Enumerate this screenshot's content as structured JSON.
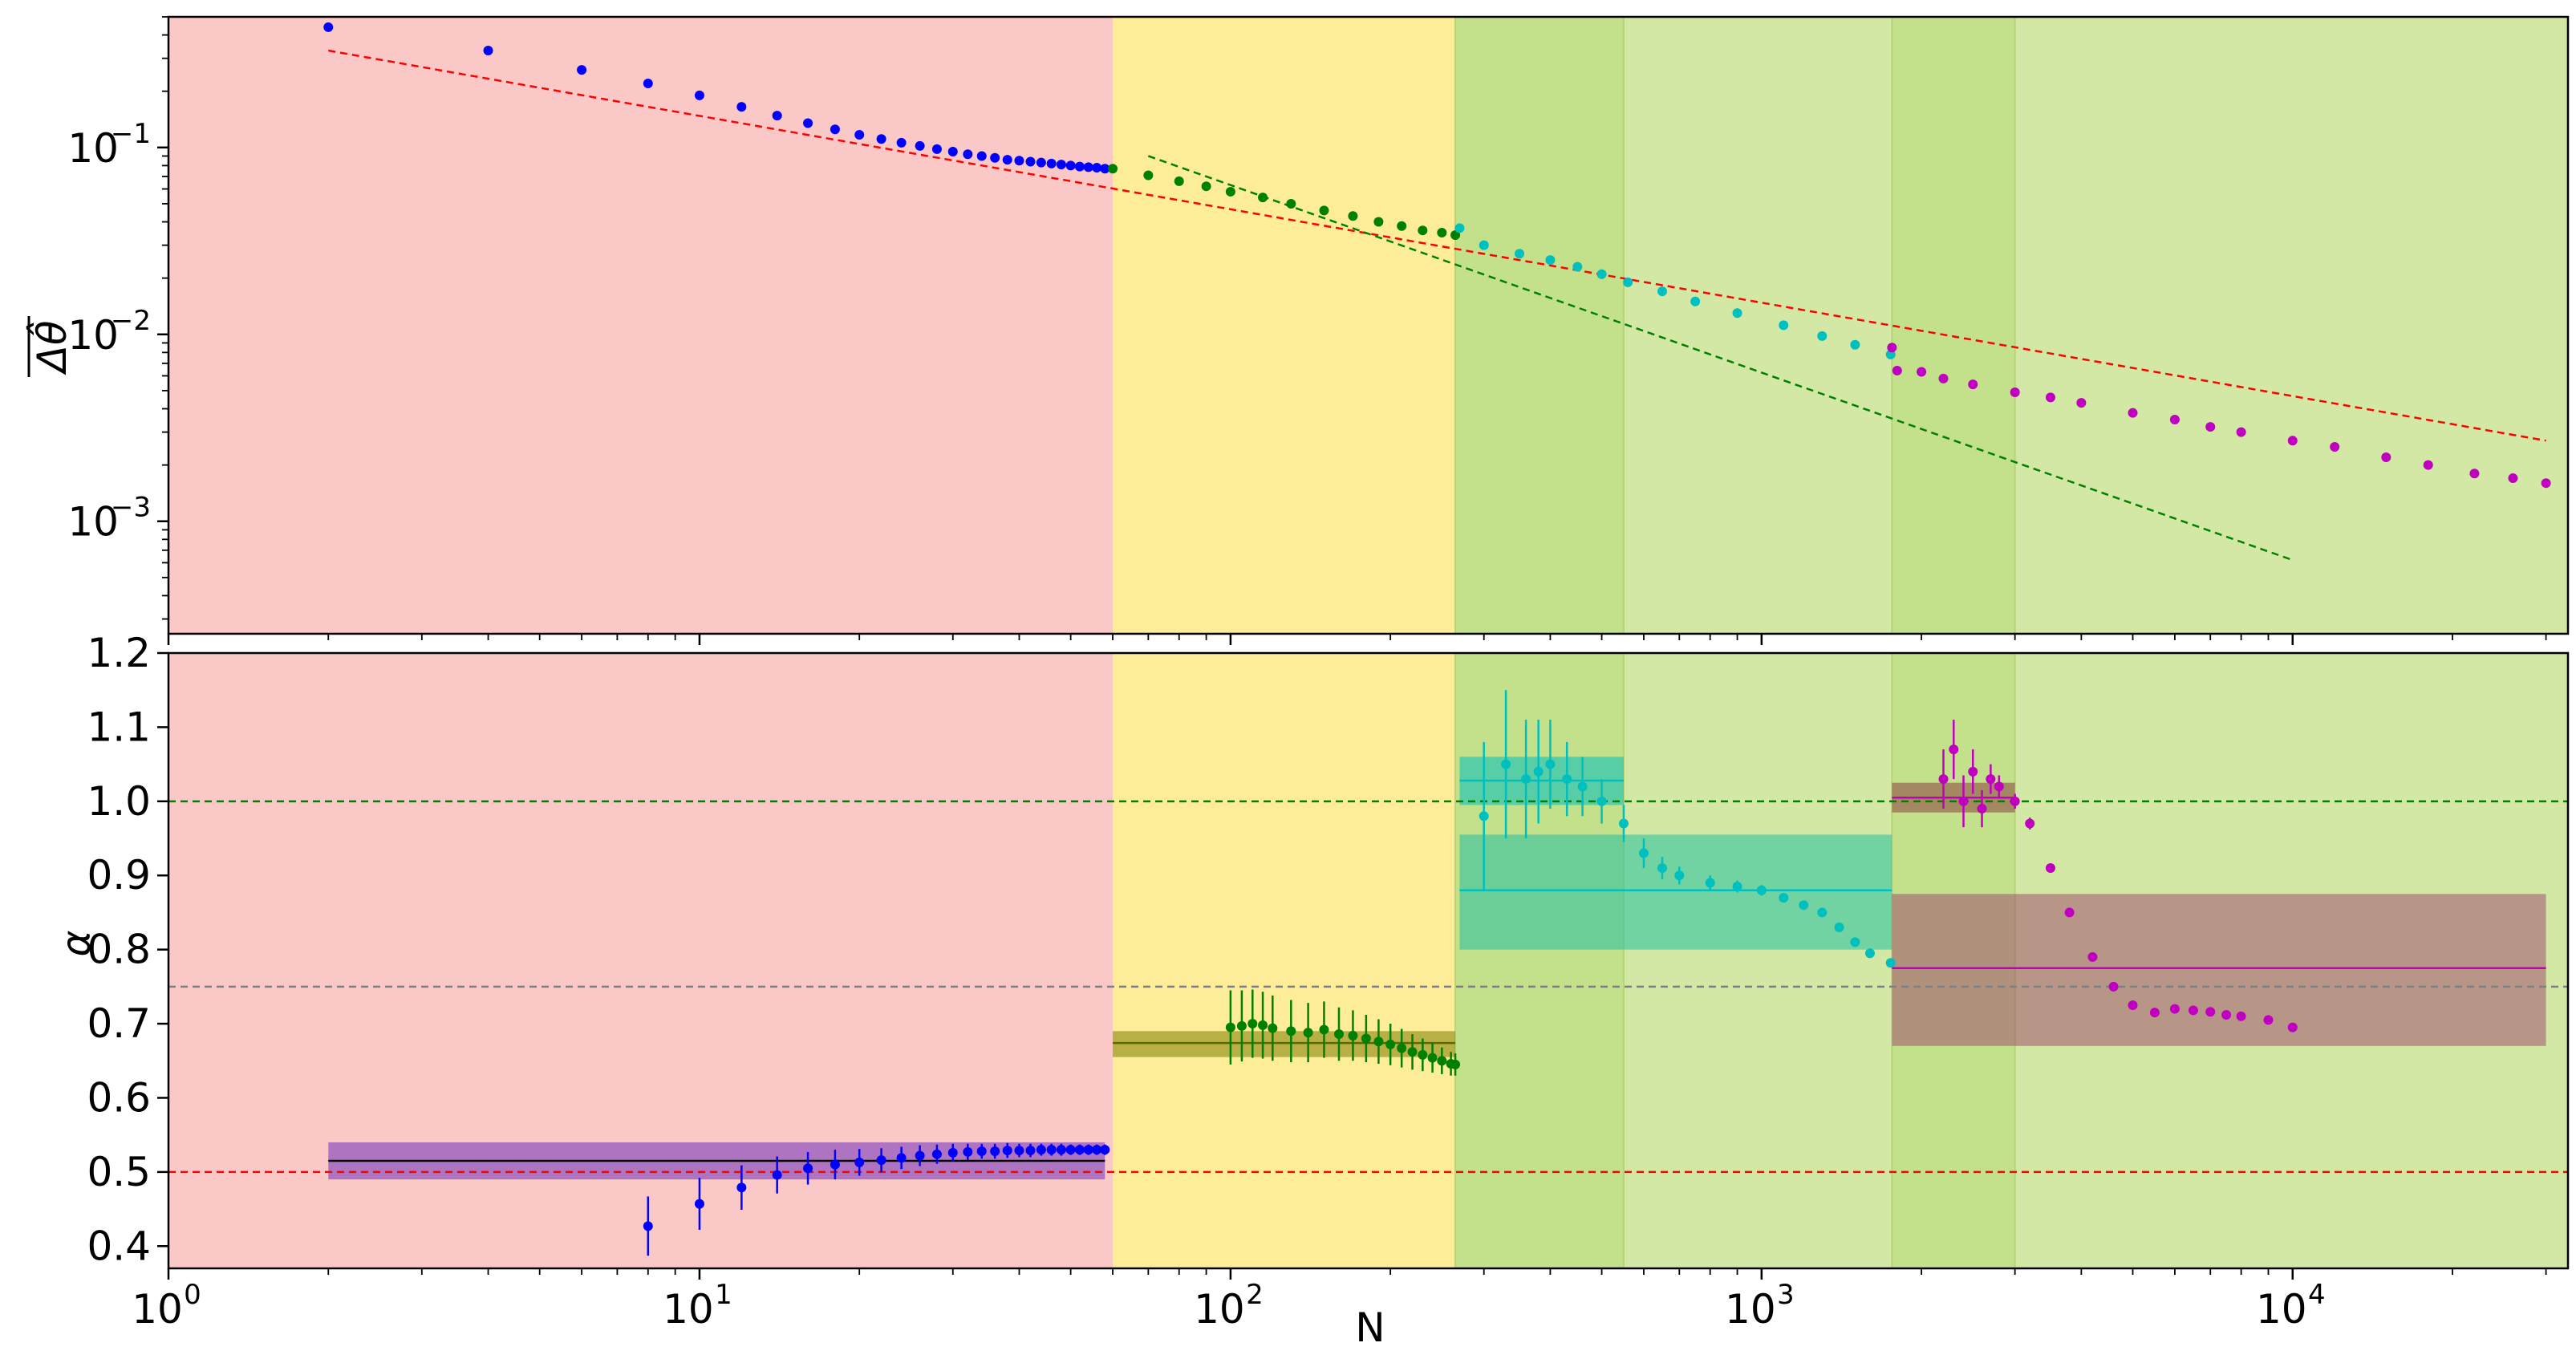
{
  "chart_data": [
    {
      "type": "scatter",
      "panel": "top",
      "ylabel": "$\\overline{\\Delta\\hat\\theta}$",
      "xscale": "log",
      "yscale": "log",
      "xlim": [
        1,
        33000
      ],
      "ylim": [
        0.00025,
        0.5
      ],
      "yticks": [
        {
          "value": 0.1,
          "label": "10",
          "exp": "−1"
        },
        {
          "value": 0.01,
          "label": "10",
          "exp": "−2"
        },
        {
          "value": 0.001,
          "label": "10",
          "exp": "−3"
        }
      ],
      "series": [
        {
          "color": "#0000ff",
          "x": [
            2,
            4,
            6,
            8,
            10,
            12,
            14,
            16,
            18,
            20,
            22,
            24,
            26,
            28,
            30,
            32,
            34,
            36,
            38,
            40,
            42,
            44,
            46,
            48,
            50,
            52,
            54,
            56,
            58
          ],
          "y": [
            0.44,
            0.33,
            0.26,
            0.22,
            0.19,
            0.165,
            0.148,
            0.135,
            0.125,
            0.117,
            0.111,
            0.106,
            0.102,
            0.098,
            0.095,
            0.092,
            0.09,
            0.088,
            0.086,
            0.085,
            0.084,
            0.083,
            0.082,
            0.081,
            0.08,
            0.079,
            0.0785,
            0.078,
            0.077
          ]
        },
        {
          "color": "#008000",
          "x": [
            60,
            70,
            80,
            90,
            100,
            115,
            130,
            150,
            170,
            190,
            210,
            230,
            250,
            265
          ],
          "y": [
            0.077,
            0.071,
            0.066,
            0.062,
            0.058,
            0.054,
            0.05,
            0.046,
            0.043,
            0.04,
            0.038,
            0.036,
            0.035,
            0.034
          ]
        },
        {
          "color": "#00bfbf",
          "x": [
            270,
            300,
            350,
            400,
            450,
            500,
            560,
            650,
            750,
            900,
            1100,
            1300,
            1500,
            1750
          ],
          "y": [
            0.037,
            0.03,
            0.027,
            0.025,
            0.023,
            0.021,
            0.019,
            0.017,
            0.015,
            0.013,
            0.0112,
            0.0098,
            0.0088,
            0.0078
          ]
        },
        {
          "color": "#bf00bf",
          "x": [
            1760,
            1800,
            2000,
            2200,
            2500,
            3000,
            3500,
            4000,
            5000,
            6000,
            7000,
            8000,
            10000,
            12000,
            15000,
            18000,
            22000,
            26000,
            30000
          ],
          "y": [
            0.0085,
            0.0064,
            0.0063,
            0.0058,
            0.0054,
            0.0049,
            0.0046,
            0.0043,
            0.0038,
            0.0035,
            0.0032,
            0.003,
            0.0027,
            0.0025,
            0.0022,
            0.002,
            0.0018,
            0.0017,
            0.0016
          ]
        }
      ],
      "reference_lines": [
        {
          "color": "#ff0000",
          "style": "dashed",
          "x": [
            2,
            30000
          ],
          "y": [
            0.33,
            0.0027
          ]
        },
        {
          "color": "#008000",
          "style": "dashed",
          "x": [
            70,
            10000
          ],
          "y": [
            0.09,
            0.00062
          ]
        }
      ]
    },
    {
      "type": "scatter",
      "panel": "bottom",
      "xlabel": "N",
      "ylabel": "α",
      "xscale": "log",
      "xlim": [
        1,
        33000
      ],
      "ylim": [
        0.37,
        1.2
      ],
      "xticks": [
        {
          "value": 1,
          "label": "10",
          "exp": "0"
        },
        {
          "value": 10,
          "label": "10",
          "exp": "1"
        },
        {
          "value": 100,
          "label": "10",
          "exp": "2"
        },
        {
          "value": 1000,
          "label": "10",
          "exp": "3"
        },
        {
          "value": 10000,
          "label": "10",
          "exp": "4"
        }
      ],
      "yticks": [
        "0.4",
        "0.5",
        "0.6",
        "0.7",
        "0.8",
        "0.9",
        "1.0",
        "1.1",
        "1.2"
      ],
      "series": [
        {
          "color": "#0000ff",
          "x": [
            8,
            10,
            12,
            14,
            16,
            18,
            20,
            22,
            24,
            26,
            28,
            30,
            32,
            34,
            36,
            38,
            40,
            42,
            44,
            46,
            48,
            50,
            52,
            54,
            56,
            58
          ],
          "y": [
            0.427,
            0.457,
            0.479,
            0.496,
            0.505,
            0.51,
            0.513,
            0.516,
            0.519,
            0.522,
            0.524,
            0.526,
            0.527,
            0.528,
            0.528,
            0.529,
            0.529,
            0.529,
            0.53,
            0.53,
            0.53,
            0.53,
            0.53,
            0.53,
            0.53,
            0.53
          ],
          "err": [
            0.04,
            0.035,
            0.03,
            0.025,
            0.022,
            0.02,
            0.018,
            0.016,
            0.015,
            0.014,
            0.013,
            0.012,
            0.011,
            0.01,
            0.01,
            0.01,
            0.009,
            0.009,
            0.008,
            0.008,
            0.008,
            0.007,
            0.007,
            0.007,
            0.007,
            0.007
          ]
        },
        {
          "color": "#008000",
          "x": [
            100,
            105,
            110,
            115,
            120,
            130,
            140,
            150,
            160,
            170,
            180,
            190,
            200,
            210,
            220,
            230,
            240,
            250,
            260,
            265
          ],
          "y": [
            0.695,
            0.697,
            0.7,
            0.698,
            0.694,
            0.69,
            0.688,
            0.692,
            0.686,
            0.684,
            0.68,
            0.676,
            0.672,
            0.667,
            0.662,
            0.658,
            0.654,
            0.65,
            0.646,
            0.645
          ],
          "err": [
            0.05,
            0.048,
            0.046,
            0.045,
            0.044,
            0.042,
            0.04,
            0.038,
            0.036,
            0.034,
            0.032,
            0.03,
            0.028,
            0.026,
            0.024,
            0.022,
            0.02,
            0.018,
            0.016,
            0.015
          ]
        },
        {
          "color": "#00bfbf",
          "x": [
            300,
            330,
            360,
            380,
            400,
            430,
            460,
            500,
            550,
            600,
            650,
            700,
            800,
            900,
            1000,
            1100,
            1200,
            1300,
            1400,
            1500,
            1600,
            1750
          ],
          "y": [
            0.98,
            1.05,
            1.03,
            1.04,
            1.05,
            1.03,
            1.02,
            1.0,
            0.97,
            0.93,
            0.91,
            0.9,
            0.89,
            0.885,
            0.88,
            0.87,
            0.86,
            0.85,
            0.83,
            0.81,
            0.795,
            0.782
          ],
          "err": [
            0.1,
            0.1,
            0.08,
            0.07,
            0.06,
            0.05,
            0.04,
            0.03,
            0.025,
            0.02,
            0.015,
            0.012,
            0.01,
            0.008,
            0.007,
            0.006,
            0.005,
            0.005,
            0.005,
            0.005,
            0.005,
            0.005
          ]
        },
        {
          "color": "#bf00bf",
          "x": [
            2200,
            2300,
            2400,
            2500,
            2600,
            2700,
            2800,
            3000,
            3200,
            3500,
            3800,
            4200,
            4600,
            5000,
            5500,
            6000,
            6500,
            7000,
            7500,
            8000,
            9000,
            10000
          ],
          "y": [
            1.03,
            1.07,
            1.0,
            1.04,
            0.99,
            1.03,
            1.02,
            1.0,
            0.97,
            0.91,
            0.85,
            0.79,
            0.75,
            0.725,
            0.715,
            0.72,
            0.718,
            0.716,
            0.712,
            0.71,
            0.705,
            0.695
          ],
          "err": [
            0.04,
            0.04,
            0.035,
            0.03,
            0.025,
            0.02,
            0.015,
            0.01,
            0.008,
            0.006,
            0.005,
            0.005,
            0.004,
            0.004,
            0.004,
            0.004,
            0.004,
            0.004,
            0.004,
            0.004,
            0.004,
            0.004
          ]
        }
      ],
      "fit_bands": [
        {
          "color": "#7030c0",
          "line": "#000000",
          "x": [
            2,
            58
          ],
          "value": 0.515,
          "low": 0.49,
          "high": 0.54
        },
        {
          "color": "#808000",
          "line": "#556b00",
          "x": [
            60,
            265
          ],
          "value": 0.674,
          "low": 0.655,
          "high": 0.69
        },
        {
          "color": "#00bfbf",
          "line": "#00bfbf",
          "x": [
            270,
            550
          ],
          "value": 1.028,
          "low": 0.995,
          "high": 1.06
        },
        {
          "color": "#20c0a0",
          "line": "#00bfbf",
          "x": [
            270,
            1760
          ],
          "value": 0.88,
          "low": 0.8,
          "high": 0.955
        },
        {
          "color": "#8b4040",
          "line": "#bf00bf",
          "x": [
            1760,
            3000
          ],
          "value": 1.005,
          "low": 0.985,
          "high": 1.025
        },
        {
          "color": "#a05070",
          "line": "#bf00bf",
          "x": [
            1760,
            30000
          ],
          "value": 0.775,
          "low": 0.67,
          "high": 0.875
        }
      ],
      "reference_lines": [
        {
          "color": "#008000",
          "value": 1.0
        },
        {
          "color": "#808080",
          "value": 0.75
        },
        {
          "color": "#ff0000",
          "value": 0.5
        }
      ]
    }
  ],
  "regions": [
    {
      "x": [
        1,
        60
      ],
      "color": "#fac8c6"
    },
    {
      "x": [
        60,
        265
      ],
      "color": "#fdec98"
    },
    {
      "x": [
        265,
        33000
      ],
      "color": "#d3e8a4"
    },
    {
      "x": [
        265,
        550
      ],
      "color": "#c3e08a"
    },
    {
      "x": [
        1760,
        3000
      ],
      "color": "#c3e08a"
    }
  ]
}
